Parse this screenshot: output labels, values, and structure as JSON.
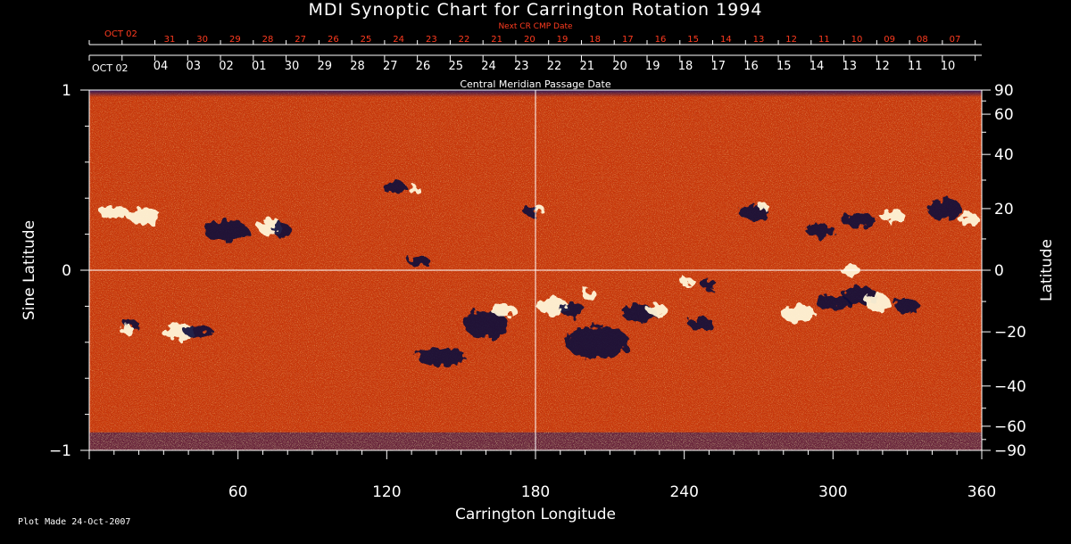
{
  "colors": {
    "background": "#000000",
    "text": "#ffffff",
    "next_cr_text": "#ff3b1f",
    "map_base": "#c8380a"
  },
  "chart_data": {
    "type": "heatmap",
    "title": "MDI Synoptic Chart for Carrington Rotation 1994",
    "xlabel": "Carrington Longitude",
    "ylabel_left": "Sine Latitude",
    "ylabel_right": "Latitude",
    "xlim": [
      0,
      360
    ],
    "ylim": [
      -1,
      1
    ],
    "x_ticks": [
      60,
      120,
      180,
      240,
      300,
      360
    ],
    "left_ticks": [
      {
        "v": 1,
        "label": "1"
      },
      {
        "v": 0,
        "label": "0"
      },
      {
        "v": -1,
        "label": "−1"
      }
    ],
    "right_ticks": [
      {
        "deg": 90,
        "label": "90"
      },
      {
        "deg": 60,
        "label": "60"
      },
      {
        "deg": 40,
        "label": "40"
      },
      {
        "deg": 20,
        "label": "20"
      },
      {
        "deg": 0,
        "label": "0"
      },
      {
        "deg": -20,
        "label": "−20"
      },
      {
        "deg": -40,
        "label": "−40"
      },
      {
        "deg": -60,
        "label": "−60"
      },
      {
        "deg": -90,
        "label": "−90"
      }
    ],
    "cmp_axis_label": "Central Meridian Passage Date",
    "cmp_start_label": "OCT 02",
    "cmp_dates": [
      "04",
      "03",
      "02",
      "01",
      "30",
      "29",
      "28",
      "27",
      "26",
      "25",
      "24",
      "23",
      "22",
      "21",
      "20",
      "19",
      "18",
      "17",
      "16",
      "15",
      "14",
      "13",
      "12",
      "11",
      "10"
    ],
    "next_cr_label": "Next CR CMP Date",
    "next_cr_start_label": "OCT 02",
    "next_cr_dates": [
      "31",
      "30",
      "29",
      "28",
      "27",
      "26",
      "25",
      "24",
      "23",
      "22",
      "21",
      "20",
      "19",
      "18",
      "17",
      "16",
      "15",
      "14",
      "13",
      "12",
      "11",
      "10",
      "09",
      "08",
      "07"
    ],
    "grid": "lines at longitude 180 and sine latitude 0",
    "features": [
      {
        "name": "positive",
        "lon": 10,
        "sinlat": 0.32,
        "w": 12,
        "h": 0.08
      },
      {
        "name": "positive",
        "lon": 22,
        "sinlat": 0.3,
        "w": 14,
        "h": 0.09
      },
      {
        "name": "negative",
        "lon": 55,
        "sinlat": 0.22,
        "w": 18,
        "h": 0.12
      },
      {
        "name": "positive",
        "lon": 73,
        "sinlat": 0.24,
        "w": 10,
        "h": 0.1
      },
      {
        "name": "negative",
        "lon": 78,
        "sinlat": 0.22,
        "w": 7,
        "h": 0.08
      },
      {
        "name": "negative",
        "lon": 123,
        "sinlat": 0.46,
        "w": 10,
        "h": 0.06
      },
      {
        "name": "positive",
        "lon": 131,
        "sinlat": 0.45,
        "w": 5,
        "h": 0.04
      },
      {
        "name": "negative",
        "lon": 133,
        "sinlat": 0.05,
        "w": 9,
        "h": 0.06
      },
      {
        "name": "positive",
        "lon": 181,
        "sinlat": 0.34,
        "w": 5,
        "h": 0.05
      },
      {
        "name": "negative",
        "lon": 178,
        "sinlat": 0.33,
        "w": 6,
        "h": 0.06
      },
      {
        "name": "negative",
        "lon": 268,
        "sinlat": 0.32,
        "w": 12,
        "h": 0.08
      },
      {
        "name": "positive",
        "lon": 272,
        "sinlat": 0.35,
        "w": 4,
        "h": 0.05
      },
      {
        "name": "negative",
        "lon": 295,
        "sinlat": 0.22,
        "w": 12,
        "h": 0.07
      },
      {
        "name": "negative",
        "lon": 310,
        "sinlat": 0.28,
        "w": 14,
        "h": 0.08
      },
      {
        "name": "positive",
        "lon": 324,
        "sinlat": 0.3,
        "w": 10,
        "h": 0.07
      },
      {
        "name": "negative",
        "lon": 345,
        "sinlat": 0.34,
        "w": 14,
        "h": 0.12
      },
      {
        "name": "positive",
        "lon": 355,
        "sinlat": 0.28,
        "w": 8,
        "h": 0.08
      },
      {
        "name": "positive",
        "lon": 36,
        "sinlat": -0.34,
        "w": 14,
        "h": 0.09
      },
      {
        "name": "negative",
        "lon": 44,
        "sinlat": -0.34,
        "w": 12,
        "h": 0.07
      },
      {
        "name": "negative",
        "lon": 17,
        "sinlat": -0.3,
        "w": 6,
        "h": 0.05
      },
      {
        "name": "positive",
        "lon": 15,
        "sinlat": -0.33,
        "w": 6,
        "h": 0.05
      },
      {
        "name": "negative",
        "lon": 142,
        "sinlat": -0.48,
        "w": 20,
        "h": 0.1
      },
      {
        "name": "negative",
        "lon": 160,
        "sinlat": -0.3,
        "w": 18,
        "h": 0.15
      },
      {
        "name": "positive",
        "lon": 167,
        "sinlat": -0.22,
        "w": 10,
        "h": 0.08
      },
      {
        "name": "positive",
        "lon": 187,
        "sinlat": -0.2,
        "w": 12,
        "h": 0.1
      },
      {
        "name": "negative",
        "lon": 195,
        "sinlat": -0.22,
        "w": 10,
        "h": 0.08
      },
      {
        "name": "positive",
        "lon": 202,
        "sinlat": -0.14,
        "w": 6,
        "h": 0.06
      },
      {
        "name": "negative",
        "lon": 205,
        "sinlat": -0.4,
        "w": 26,
        "h": 0.18
      },
      {
        "name": "negative",
        "lon": 222,
        "sinlat": -0.24,
        "w": 14,
        "h": 0.1
      },
      {
        "name": "positive",
        "lon": 229,
        "sinlat": -0.22,
        "w": 8,
        "h": 0.07
      },
      {
        "name": "negative",
        "lon": 247,
        "sinlat": -0.3,
        "w": 10,
        "h": 0.08
      },
      {
        "name": "positive",
        "lon": 241,
        "sinlat": -0.06,
        "w": 6,
        "h": 0.05
      },
      {
        "name": "negative",
        "lon": 250,
        "sinlat": -0.08,
        "w": 6,
        "h": 0.06
      },
      {
        "name": "positive",
        "lon": 286,
        "sinlat": -0.24,
        "w": 14,
        "h": 0.1
      },
      {
        "name": "negative",
        "lon": 300,
        "sinlat": -0.18,
        "w": 14,
        "h": 0.08
      },
      {
        "name": "negative",
        "lon": 311,
        "sinlat": -0.14,
        "w": 14,
        "h": 0.1
      },
      {
        "name": "positive",
        "lon": 318,
        "sinlat": -0.18,
        "w": 10,
        "h": 0.1
      },
      {
        "name": "positive",
        "lon": 307,
        "sinlat": 0.0,
        "w": 8,
        "h": 0.06
      },
      {
        "name": "negative",
        "lon": 330,
        "sinlat": -0.2,
        "w": 10,
        "h": 0.08
      }
    ]
  },
  "footer": {
    "plot_made": "Plot Made 24-Oct-2007"
  }
}
